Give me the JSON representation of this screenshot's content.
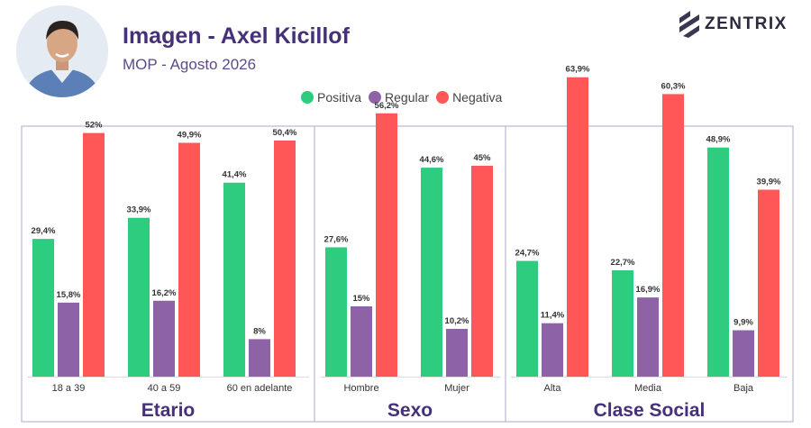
{
  "header": {
    "title": "Imagen - Axel Kicillof",
    "subtitle": "MOP - Agosto 2026",
    "brand": "ZENTRIX"
  },
  "legend": [
    {
      "label": "Positiva",
      "color": "#2ecc7f"
    },
    {
      "label": "Regular",
      "color": "#8e62a7"
    },
    {
      "label": "Negativa",
      "color": "#ff5757"
    }
  ],
  "chart_data": {
    "type": "bar",
    "series_names": [
      "Positiva",
      "Regular",
      "Negativa"
    ],
    "colors": [
      "#2ecc7f",
      "#8e62a7",
      "#ff5757"
    ],
    "ylim": [
      0,
      70
    ],
    "groups": [
      {
        "title": "Etario",
        "categories": [
          {
            "label": "18 a 39",
            "values": [
              29.4,
              15.8,
              52
            ],
            "labels": [
              "29,4%",
              "15,8%",
              "52%"
            ]
          },
          {
            "label": "40 a 59",
            "values": [
              33.9,
              16.2,
              49.9
            ],
            "labels": [
              "33,9%",
              "16,2%",
              "49,9%"
            ]
          },
          {
            "label": "60 en adelante",
            "values": [
              41.4,
              8,
              50.4
            ],
            "labels": [
              "41,4%",
              "8%",
              "50,4%"
            ]
          }
        ]
      },
      {
        "title": "Sexo",
        "categories": [
          {
            "label": "Hombre",
            "values": [
              27.6,
              15,
              56.2
            ],
            "labels": [
              "27,6%",
              "15%",
              "56,2%"
            ]
          },
          {
            "label": "Mujer",
            "values": [
              44.6,
              10.2,
              45
            ],
            "labels": [
              "44,6%",
              "10,2%",
              "45%"
            ]
          }
        ]
      },
      {
        "title": "Clase Social",
        "categories": [
          {
            "label": "Alta",
            "values": [
              24.7,
              11.4,
              63.9
            ],
            "labels": [
              "24,7%",
              "11,4%",
              "63,9%"
            ]
          },
          {
            "label": "Media",
            "values": [
              22.7,
              16.9,
              60.3
            ],
            "labels": [
              "22,7%",
              "16,9%",
              "60,3%"
            ]
          },
          {
            "label": "Baja",
            "values": [
              48.9,
              9.9,
              39.9
            ],
            "labels": [
              "48,9%",
              "9,9%",
              "39,9%"
            ]
          }
        ]
      }
    ]
  }
}
